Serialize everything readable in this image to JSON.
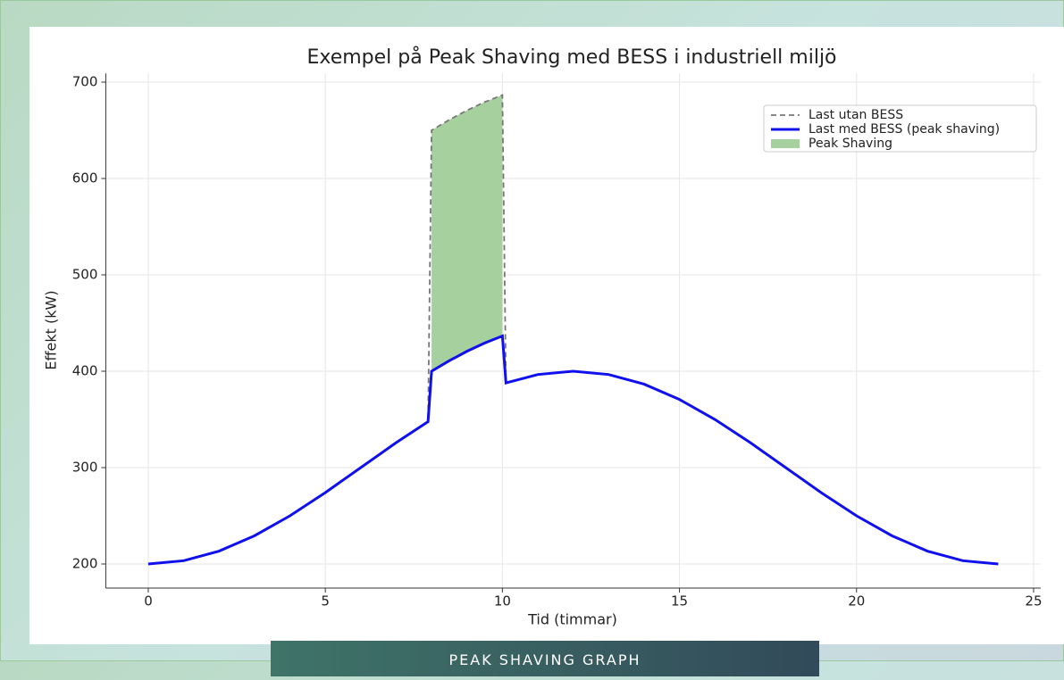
{
  "chart_data": {
    "type": "line",
    "title": "Exempel på Peak Shaving med BESS i industriell miljö",
    "xlabel": "Tid (timmar)",
    "ylabel": "Effekt (kW)",
    "x": [
      0,
      1,
      2,
      3,
      4,
      5,
      6,
      7,
      7.9,
      8,
      8.5,
      9,
      9.5,
      10,
      10.1,
      11,
      12,
      13,
      14,
      15,
      16,
      17,
      18,
      19,
      20,
      21,
      22,
      23,
      24
    ],
    "series": [
      {
        "name": "Last utan BESS",
        "color": "#777777",
        "dash": true,
        "values": [
          200,
          203.4,
          213.4,
          229.3,
          250,
          274.1,
          300,
          325.9,
          347.7,
          650,
          660.9,
          670.7,
          679.3,
          686.6,
          387.9,
          396.6,
          400,
          396.6,
          386.6,
          370.7,
          350,
          325.9,
          300,
          274.1,
          250,
          229.3,
          213.4,
          203.4,
          200
        ]
      },
      {
        "name": "Last med BESS (peak shaving)",
        "color": "#1010ee",
        "dash": false,
        "values": [
          200,
          203.4,
          213.4,
          229.3,
          250,
          274.1,
          300,
          325.9,
          347.7,
          400,
          410.9,
          420.7,
          429.3,
          436.6,
          387.9,
          396.6,
          400,
          396.6,
          386.6,
          370.7,
          350,
          325.9,
          300,
          274.1,
          250,
          229.3,
          213.4,
          203.4,
          200
        ]
      }
    ],
    "fill": {
      "name": "Peak Shaving",
      "color": "#a6d19f"
    },
    "xlim": [
      -1.2,
      25.2
    ],
    "xticks": [
      0,
      5,
      10,
      15,
      20,
      25
    ],
    "ylim": [
      175,
      709
    ],
    "yticks": [
      200,
      300,
      400,
      500,
      600,
      700
    ],
    "grid": true,
    "legend": "upper right"
  },
  "caption": "PEAK SHAVING GRAPH"
}
